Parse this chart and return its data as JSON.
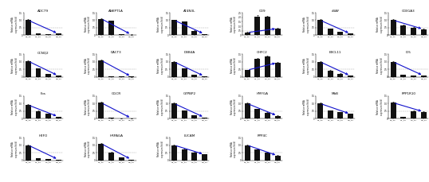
{
  "genes": [
    {
      "name": "ADC79",
      "values": [
        1.0,
        0.13,
        0.08,
        0.1
      ],
      "row": 0,
      "col": 0,
      "ylim": [
        0,
        1.5
      ],
      "yticks": [
        0,
        0.5,
        1.0,
        1.5
      ]
    },
    {
      "name": "ANKPT1A",
      "values": [
        1.1,
        0.95,
        0.07,
        0.04
      ],
      "row": 0,
      "col": 1,
      "ylim": [
        0,
        1.5
      ],
      "yticks": [
        0,
        0.5,
        1.0,
        1.5
      ]
    },
    {
      "name": "AT4N3L",
      "values": [
        1.0,
        0.9,
        0.3,
        0.08
      ],
      "row": 0,
      "col": 2,
      "ylim": [
        0,
        1.5
      ],
      "yticks": [
        0,
        0.5,
        1.0,
        1.5
      ]
    },
    {
      "name": "CD9",
      "values": [
        0.3,
        2.1,
        2.05,
        0.75
      ],
      "row": 0,
      "col": 3,
      "ylim": [
        0,
        2.5
      ],
      "yticks": [
        0,
        0.5,
        1.0,
        1.5,
        2.0,
        2.5
      ]
    },
    {
      "name": "cBAF",
      "values": [
        1.0,
        0.42,
        0.22,
        0.1
      ],
      "row": 0,
      "col": 4,
      "ylim": [
        0,
        1.5
      ],
      "yticks": [
        0,
        0.5,
        1.0,
        1.5
      ]
    },
    {
      "name": "COX1A3",
      "values": [
        1.0,
        0.65,
        0.5,
        0.4
      ],
      "row": 0,
      "col": 5,
      "ylim": [
        0,
        1.5
      ],
      "yticks": [
        0,
        0.5,
        1.0,
        1.5
      ]
    },
    {
      "name": "CCNQ2",
      "values": [
        1.05,
        0.55,
        0.18,
        0.07
      ],
      "row": 1,
      "col": 0,
      "ylim": [
        0,
        1.5
      ],
      "yticks": [
        0,
        0.5,
        1.0,
        1.5
      ]
    },
    {
      "name": "DACT3",
      "values": [
        1.1,
        0.04,
        0.025,
        0.015
      ],
      "row": 1,
      "col": 1,
      "ylim": [
        0,
        1.5
      ],
      "yticks": [
        0,
        0.5,
        1.0,
        1.5
      ]
    },
    {
      "name": "DBB4A",
      "values": [
        1.0,
        0.55,
        0.12,
        0.04
      ],
      "row": 1,
      "col": 2,
      "ylim": [
        0,
        1.5
      ],
      "yticks": [
        0,
        0.5,
        1.0,
        1.5
      ]
    },
    {
      "name": "CHFC2",
      "values": [
        0.45,
        1.2,
        1.35,
        0.95
      ],
      "row": 1,
      "col": 3,
      "ylim": [
        0,
        1.5
      ],
      "yticks": [
        0,
        0.5,
        1.0,
        1.5
      ]
    },
    {
      "name": "EXCL11",
      "values": [
        1.0,
        0.42,
        0.22,
        0.07
      ],
      "row": 1,
      "col": 4,
      "ylim": [
        0,
        1.5
      ],
      "yticks": [
        0,
        0.5,
        1.0,
        1.5
      ]
    },
    {
      "name": "ID5",
      "values": [
        1.0,
        0.13,
        0.1,
        0.08
      ],
      "row": 1,
      "col": 5,
      "ylim": [
        0,
        1.5
      ],
      "yticks": [
        0,
        0.5,
        1.0,
        1.5
      ]
    },
    {
      "name": "Fos",
      "values": [
        0.9,
        0.5,
        0.3,
        0.12
      ],
      "row": 2,
      "col": 0,
      "ylim": [
        0,
        1.5
      ],
      "yticks": [
        0,
        0.5,
        1.0,
        1.5
      ]
    },
    {
      "name": "GGCR",
      "values": [
        1.05,
        0.04,
        0.025,
        0.015
      ],
      "row": 2,
      "col": 1,
      "ylim": [
        0,
        1.5
      ],
      "yticks": [
        0,
        0.5,
        1.0,
        1.5
      ]
    },
    {
      "name": "GTPBP2",
      "values": [
        1.0,
        0.52,
        0.22,
        0.07
      ],
      "row": 2,
      "col": 2,
      "ylim": [
        0,
        1.5
      ],
      "yticks": [
        0,
        0.5,
        1.0,
        1.5
      ]
    },
    {
      "name": "HMFGA",
      "values": [
        1.0,
        0.62,
        0.38,
        0.18
      ],
      "row": 2,
      "col": 3,
      "ylim": [
        0,
        1.5
      ],
      "yticks": [
        0,
        0.5,
        1.0,
        1.5
      ]
    },
    {
      "name": "MbB",
      "values": [
        1.0,
        0.52,
        0.42,
        0.3
      ],
      "row": 2,
      "col": 4,
      "ylim": [
        0,
        1.5
      ],
      "yticks": [
        0,
        0.5,
        1.0,
        1.5
      ]
    },
    {
      "name": "PPP1R10",
      "values": [
        1.05,
        0.1,
        0.5,
        0.45
      ],
      "row": 2,
      "col": 5,
      "ylim": [
        0,
        1.5
      ],
      "yticks": [
        0,
        0.5,
        1.0,
        1.5
      ]
    },
    {
      "name": "H2FO",
      "values": [
        1.0,
        0.13,
        0.07,
        0.04
      ],
      "row": 3,
      "col": 0,
      "ylim": [
        0,
        1.5
      ],
      "yticks": [
        0,
        0.5,
        1.0,
        1.5
      ]
    },
    {
      "name": "HRPAGA",
      "values": [
        1.1,
        0.52,
        0.18,
        0.04
      ],
      "row": 3,
      "col": 1,
      "ylim": [
        0,
        1.5
      ],
      "yticks": [
        0,
        0.5,
        1.0,
        1.5
      ]
    },
    {
      "name": "LUCAM",
      "values": [
        1.0,
        0.72,
        0.52,
        0.38
      ],
      "row": 3,
      "col": 2,
      "ylim": [
        0,
        1.5
      ],
      "yticks": [
        0,
        0.5,
        1.0,
        1.5
      ]
    },
    {
      "name": "PPP4C",
      "values": [
        1.0,
        0.72,
        0.52,
        0.3
      ],
      "row": 3,
      "col": 3,
      "ylim": [
        0,
        1.5
      ],
      "yticks": [
        0,
        0.5,
        1.0,
        1.5
      ]
    }
  ],
  "x_labels": [
    "VC_30",
    "M1_30",
    "M2_30",
    "M3_30"
  ],
  "bar_color": "#111111",
  "line_color": "#1111cc",
  "grid_color": "#aaaaaa",
  "nrows": 4,
  "ncols": 6,
  "figsize": [
    5.38,
    2.29
  ],
  "dpi": 100,
  "errors": [
    [
      0.07,
      0.015,
      0.008,
      0.015
    ],
    [
      0.04,
      0.04,
      0.008,
      0.008
    ],
    [
      0.05,
      0.035,
      0.025,
      0.015
    ],
    [
      0.04,
      0.1,
      0.09,
      0.05
    ],
    [
      0.06,
      0.03,
      0.015,
      0.008
    ],
    [
      0.07,
      0.04,
      0.03,
      0.025
    ],
    [
      0.07,
      0.04,
      0.015,
      0.008
    ],
    [
      0.05,
      0.008,
      0.004,
      0.004
    ],
    [
      0.06,
      0.04,
      0.015,
      0.008
    ],
    [
      0.035,
      0.07,
      0.08,
      0.06
    ],
    [
      0.06,
      0.03,
      0.015,
      0.008
    ],
    [
      0.06,
      0.015,
      0.015,
      0.008
    ],
    [
      0.05,
      0.03,
      0.025,
      0.015
    ],
    [
      0.05,
      0.008,
      0.004,
      0.004
    ],
    [
      0.06,
      0.04,
      0.015,
      0.008
    ],
    [
      0.06,
      0.04,
      0.03,
      0.015
    ],
    [
      0.06,
      0.04,
      0.03,
      0.025
    ],
    [
      0.05,
      0.015,
      0.035,
      0.035
    ],
    [
      0.06,
      0.015,
      0.008,
      0.008
    ],
    [
      0.05,
      0.03,
      0.015,
      0.008
    ],
    [
      0.06,
      0.04,
      0.03,
      0.025
    ],
    [
      0.06,
      0.04,
      0.03,
      0.025
    ]
  ]
}
